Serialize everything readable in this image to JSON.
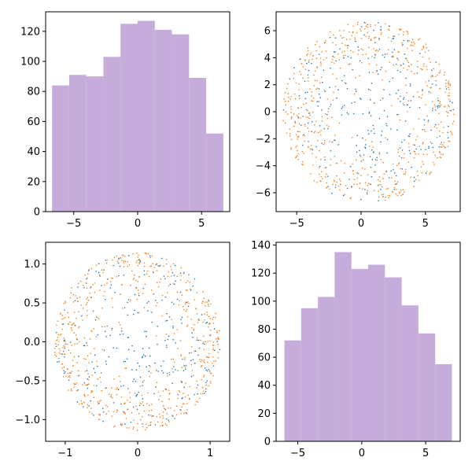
{
  "colors": {
    "bar": "#c5acda",
    "series_blue": "#1f77b4",
    "series_orange": "#ff7f0e"
  },
  "chart_data": [
    {
      "type": "bar",
      "position_label": "top-left histogram",
      "bin_edges": [
        -6.7,
        -5.36,
        -4.02,
        -2.68,
        -1.34,
        0.0,
        1.34,
        2.68,
        4.02,
        5.36,
        6.7
      ],
      "values": [
        84,
        91,
        90,
        103,
        125,
        127,
        121,
        118,
        89,
        52
      ],
      "xlim": [
        -7.2,
        7.2
      ],
      "ylim": [
        0,
        133
      ],
      "xticks": [
        -5,
        0,
        5
      ],
      "yticks": [
        0,
        20,
        40,
        60,
        80,
        100,
        120
      ],
      "xtick_labels": [
        "−5",
        "0",
        "5"
      ],
      "ytick_labels": [
        "0",
        "20",
        "40",
        "60",
        "80",
        "100",
        "120"
      ],
      "grid": false
    },
    {
      "type": "scatter",
      "shape": "disk",
      "center": [
        0.6,
        0.0
      ],
      "radius": 6.7,
      "series": [
        {
          "color_key": "series_blue",
          "distribution": "uniform",
          "count": 300
        },
        {
          "color_key": "series_orange",
          "distribution": "edge-weighted",
          "count": 600
        }
      ],
      "xlim": [
        -6.6,
        7.7
      ],
      "ylim": [
        -7.4,
        7.4
      ],
      "xticks": [
        -5,
        0,
        5
      ],
      "yticks": [
        -6,
        -4,
        -2,
        0,
        2,
        4,
        6
      ],
      "xtick_labels": [
        "−5",
        "0",
        "5"
      ],
      "ytick_labels": [
        "−6",
        "−4",
        "−2",
        "0",
        "2",
        "4",
        "6"
      ],
      "grid": false
    },
    {
      "type": "scatter",
      "shape": "disk",
      "center": [
        0.0,
        0.0
      ],
      "radius": 1.15,
      "series": [
        {
          "color_key": "series_blue",
          "distribution": "uniform",
          "count": 300
        },
        {
          "color_key": "series_orange",
          "distribution": "edge-weighted",
          "count": 600
        }
      ],
      "xlim": [
        -1.27,
        1.27
      ],
      "ylim": [
        -1.28,
        1.28
      ],
      "xticks": [
        -1,
        0,
        1
      ],
      "yticks": [
        -1.0,
        -0.5,
        0.0,
        0.5,
        1.0
      ],
      "xtick_labels": [
        "−1",
        "0",
        "1"
      ],
      "ytick_labels": [
        "−1.0",
        "−0.5",
        "0.0",
        "0.5",
        "1.0"
      ],
      "grid": false
    },
    {
      "type": "bar",
      "position_label": "bottom-right histogram",
      "bin_edges": [
        -6.05,
        -4.74,
        -3.43,
        -2.12,
        -0.81,
        0.5,
        1.81,
        3.12,
        4.43,
        5.74,
        7.05
      ],
      "values": [
        72,
        95,
        103,
        135,
        123,
        126,
        117,
        97,
        77,
        55
      ],
      "xlim": [
        -6.7,
        7.7
      ],
      "ylim": [
        0,
        142
      ],
      "xticks": [
        -5,
        0,
        5
      ],
      "yticks": [
        0,
        20,
        40,
        60,
        80,
        100,
        120,
        140
      ],
      "xtick_labels": [
        "−5",
        "0",
        "5"
      ],
      "ytick_labels": [
        "0",
        "20",
        "40",
        "60",
        "80",
        "100",
        "120",
        "140"
      ],
      "grid": false
    }
  ]
}
